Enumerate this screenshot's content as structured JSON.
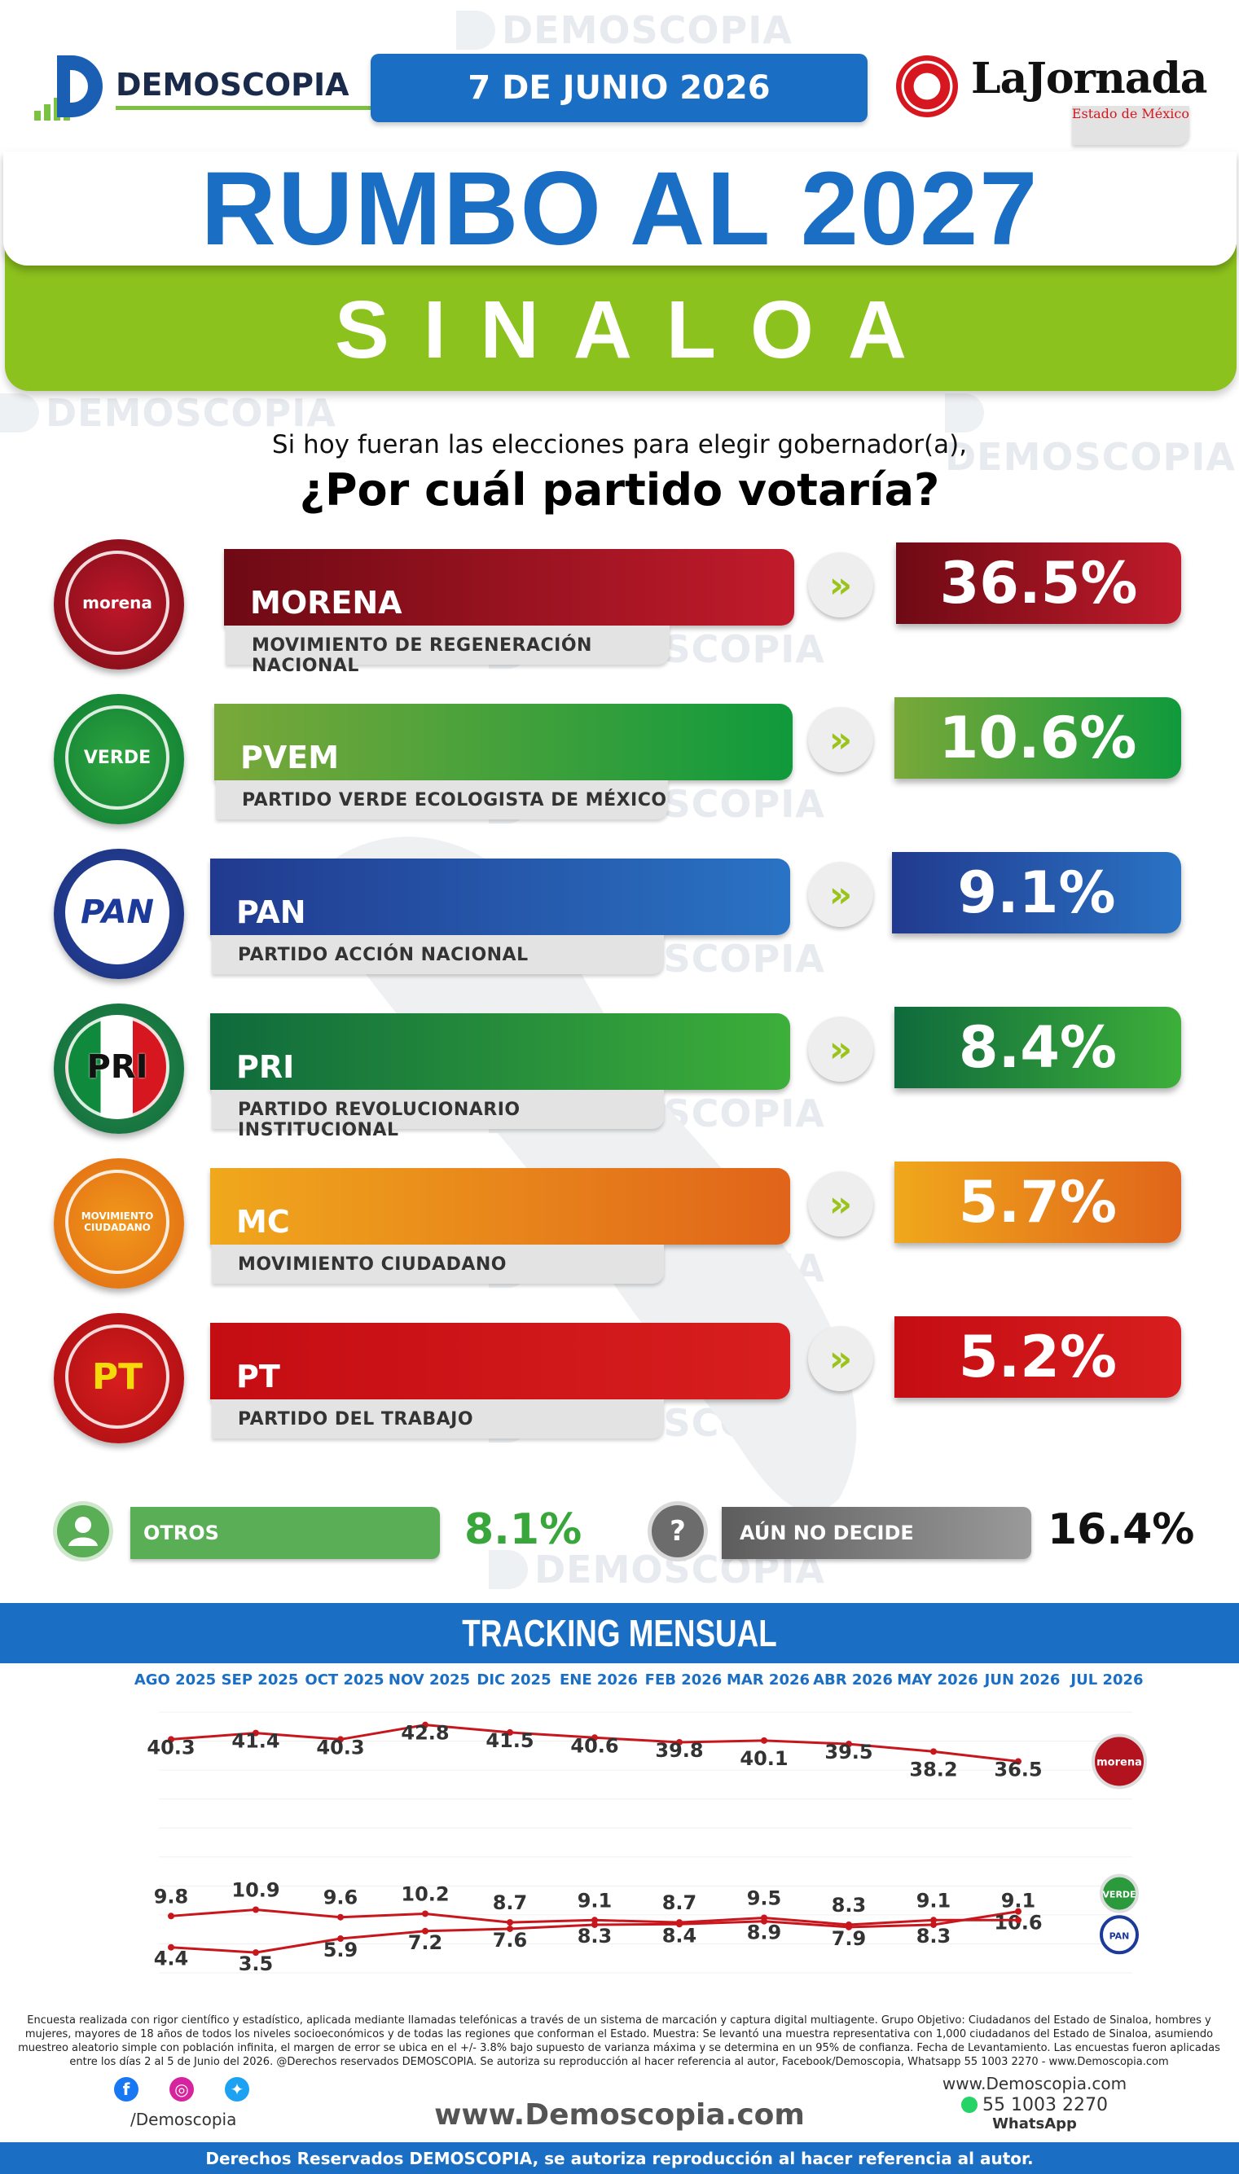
{
  "header": {
    "brand": "DEMOSCOPIA",
    "date": "7 DE JUNIO 2026",
    "partner": "LaJornada",
    "partner_sub": "Estado de México"
  },
  "title": "RUMBO AL 2027",
  "state": "SINALOA",
  "question": {
    "line1": "Si hoy fueran las elecciones para elegir gobernador(a),",
    "line2": "¿Por cuál partido votaría?"
  },
  "parties": [
    {
      "abbr": "MORENA",
      "logo_text": "morena",
      "name": "MOVIMIENTO DE REGENERACIÓN NACIONAL",
      "pct": "36.5%",
      "color_from": "#6e0a14",
      "color_to": "#c11b2b"
    },
    {
      "abbr": "PVEM",
      "logo_text": "VERDE",
      "name": "PARTIDO VERDE ECOLOGISTA DE MÉXICO",
      "pct": "10.6%",
      "color_from": "#7aa83a",
      "color_to": "#0f9a3c"
    },
    {
      "abbr": "PAN",
      "logo_text": "PAN",
      "name": "PARTIDO ACCIÓN NACIONAL",
      "pct": "9.1%",
      "color_from": "#213a8f",
      "color_to": "#2a73c4"
    },
    {
      "abbr": "PRI",
      "logo_text": "PRI",
      "name": "PARTIDO REVOLUCIONARIO INSTITUCIONAL",
      "pct": "8.4%",
      "color_from": "#0f6a3c",
      "color_to": "#3daf3a"
    },
    {
      "abbr": "MC",
      "logo_text": "MOVIMIENTO CIUDADANO",
      "name": "MOVIMIENTO CIUDADANO",
      "pct": "5.7%",
      "color_from": "#f0a81c",
      "color_to": "#e0641a"
    },
    {
      "abbr": "PT",
      "logo_text": "PT",
      "name": "PARTIDO DEL TRABAJO",
      "pct": "5.2%",
      "color_from": "#c40d13",
      "color_to": "#d81e1e"
    }
  ],
  "others": {
    "label": "OTROS",
    "pct": "8.1%"
  },
  "undecided": {
    "label": "AÚN NO DECIDE",
    "icon": "?",
    "pct": "16.4%"
  },
  "tracking_title": "TRACKING MENSUAL",
  "chart_data": {
    "type": "line",
    "categories": [
      "AGO 2025",
      "SEP 2025",
      "OCT 2025",
      "NOV 2025",
      "DIC 2025",
      "ENE 2026",
      "FEB 2026",
      "MAR 2026",
      "ABR 2026",
      "MAY 2026",
      "JUN 2026",
      "JUL 2026"
    ],
    "series": [
      {
        "name": "morena",
        "values": [
          40.3,
          41.4,
          40.3,
          42.8,
          41.5,
          40.6,
          39.8,
          40.1,
          39.5,
          38.2,
          36.5,
          null
        ]
      },
      {
        "name": "VERDE",
        "values": [
          4.4,
          3.5,
          5.9,
          7.2,
          7.6,
          8.3,
          8.4,
          8.9,
          7.9,
          8.3,
          10.6,
          null
        ]
      },
      {
        "name": "PAN",
        "values": [
          9.8,
          10.9,
          9.6,
          10.2,
          8.7,
          9.1,
          8.7,
          9.5,
          8.3,
          9.1,
          9.1,
          null
        ]
      }
    ],
    "ylim": [
      0,
      45
    ],
    "colors": {
      "line": "#c8161d",
      "points": "#c8161d"
    },
    "end_labels": [
      "morena",
      "VERDE",
      "PAN"
    ]
  },
  "footer": {
    "fine_print": "Encuesta realizada con rigor científico y estadístico, aplicada mediante llamadas telefónicas a través de un sistema de marcación y captura digital multiagente. Grupo Objetivo: Ciudadanos del Estado de Sinaloa, hombres y mujeres, mayores de 18 años de todos los niveles socioeconómicos y de todas las regiones que conforman el Estado. Muestra: Se levantó una muestra representativa con 1,000 ciudadanos del Estado de Sinaloa, asumiendo muestreo aleatorio simple con población infinita, el margen de error se ubica en el +/- 3.8% bajo supuesto de varianza máxima y se determina en un 95% de confianza. Fecha de Levantamiento. Las encuestas fueron aplicadas entre los días 2 al 5 de Junio del 2026. @Derechos reservados DEMOSCOPIA. Se autoriza su reproducción al hacer referencia al autor, Facebook/Demoscopia, Whatsapp 55 1003 2270 - www.Demoscopia.com",
    "social_handle": "/Demoscopia",
    "website": "www.Demoscopia.com",
    "contact_web": "www.Demoscopia.com",
    "phone": "55 1003 2270",
    "whatsapp": "WhatsApp",
    "copyright": "Derechos Reservados DEMOSCOPIA, se autoriza reproducción al hacer referencia al autor."
  }
}
